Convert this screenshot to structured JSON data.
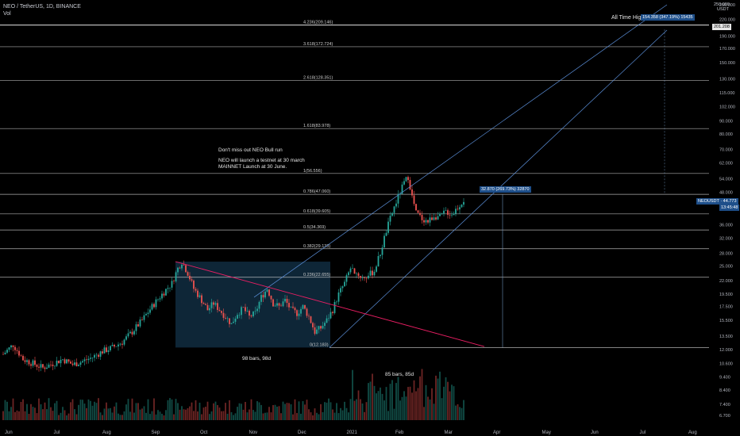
{
  "header": {
    "symbol": "NEO / TetherUS, 1D, BINANCE",
    "volume_label": "Vol",
    "currency_top": "250.000",
    "currency_code": "USDT"
  },
  "annotations": {
    "ath_label": "All Time High",
    "ath_box": "154.358 (347.19%) 15435",
    "right_target_box": "201.208",
    "measure_box": "32.870 (269.73%) 32870",
    "neo_tag": "NEOUSDT · 44.773",
    "neo_tag_sub": "13:45:48",
    "note_title": "Don't miss out NEO Bull run",
    "note_line1": "NEO will launch a testnet at 30 march",
    "note_line2": "MAINNET Launch at 30 June.",
    "bars_label_1": "98 bars, 98d",
    "bars_label_2": "85 bars, 85d"
  },
  "colors": {
    "background": "#000000",
    "up_candle": "#26a69a",
    "down_candle": "#ef5350",
    "fib_line": "#d9d9d9",
    "channel": "#5b8fd9",
    "trendline": "#e91e63",
    "box_fill": "#0f2a3d",
    "tag_blue": "#1e4f8a"
  },
  "chart_data": {
    "type": "candlestick",
    "title": "NEO / TetherUS, 1D, BINANCE",
    "y_scale": "log",
    "ylim": [
      6.0,
      250.0
    ],
    "y_ticks": [
      "250.000",
      "220.000",
      "190.000",
      "170.000",
      "150.000",
      "130.000",
      "115.000",
      "102.000",
      "90.000",
      "80.000",
      "70.000",
      "62.000",
      "54.000",
      "48.000",
      "42.000",
      "36.000",
      "32.000",
      "28.000",
      "25.000",
      "22.000",
      "19.500",
      "17.500",
      "15.500",
      "13.500",
      "12.000",
      "10.600",
      "9.400",
      "8.400",
      "7.400",
      "6.700"
    ],
    "x_ticks": [
      "Jun",
      "Jul",
      "Aug",
      "Sep",
      "Oct",
      "Nov",
      "Dec",
      "2021",
      "Feb",
      "Mar",
      "Apr",
      "May",
      "Jun",
      "Jul",
      "Aug"
    ],
    "fib_levels": [
      {
        "ratio": "4.236",
        "price": 209.146,
        "label": "4.236(209.146)"
      },
      {
        "ratio": "3.618",
        "price": 172.724,
        "label": "3.618(172.724)"
      },
      {
        "ratio": "2.618",
        "price": 128.351,
        "label": "2.618(128.351)"
      },
      {
        "ratio": "1.618",
        "price": 83.978,
        "label": "1.618(83.978)"
      },
      {
        "ratio": "1",
        "price": 56.556,
        "label": "1(56.556)"
      },
      {
        "ratio": "0.786",
        "price": 47.06,
        "label": "0.786(47.060)"
      },
      {
        "ratio": "0.618",
        "price": 39.605,
        "label": "0.618(39.605)"
      },
      {
        "ratio": "0.5",
        "price": 34.369,
        "label": "0.5(34.369)"
      },
      {
        "ratio": "0.382",
        "price": 29.133,
        "label": "0.382(29.133)"
      },
      {
        "ratio": "0.236",
        "price": 22.655,
        "label": "0.236(22.655)"
      },
      {
        "ratio": "0",
        "price": 12.183,
        "label": "0(12.183)"
      }
    ],
    "price_path": [
      [
        0,
        11.5
      ],
      [
        5,
        12.5
      ],
      [
        10,
        11.0
      ],
      [
        15,
        10.6
      ],
      [
        20,
        10.2
      ],
      [
        25,
        10.6
      ],
      [
        30,
        11.0
      ],
      [
        35,
        10.5
      ],
      [
        40,
        10.8
      ],
      [
        45,
        11.2
      ],
      [
        50,
        11.8
      ],
      [
        55,
        12.2
      ],
      [
        60,
        12.8
      ],
      [
        65,
        14.0
      ],
      [
        70,
        15.5
      ],
      [
        75,
        17.5
      ],
      [
        80,
        19.5
      ],
      [
        85,
        21.5
      ],
      [
        88,
        24.5
      ],
      [
        90,
        26.0
      ],
      [
        93,
        23.5
      ],
      [
        96,
        20.5
      ],
      [
        100,
        18.5
      ],
      [
        103,
        17.0
      ],
      [
        106,
        18.0
      ],
      [
        109,
        17.0
      ],
      [
        112,
        16.0
      ],
      [
        115,
        15.0
      ],
      [
        118,
        16.5
      ],
      [
        121,
        17.2
      ],
      [
        124,
        16.0
      ],
      [
        127,
        16.5
      ],
      [
        130,
        19.0
      ],
      [
        133,
        20.5
      ],
      [
        136,
        18.0
      ],
      [
        139,
        17.5
      ],
      [
        142,
        18.5
      ],
      [
        145,
        17.0
      ],
      [
        148,
        16.5
      ],
      [
        151,
        17.5
      ],
      [
        154,
        16.0
      ],
      [
        157,
        14.0
      ],
      [
        160,
        14.5
      ],
      [
        163,
        15.5
      ],
      [
        166,
        17.0
      ],
      [
        169,
        19.5
      ],
      [
        172,
        21.5
      ],
      [
        175,
        24.5
      ],
      [
        178,
        23.5
      ],
      [
        181,
        22.5
      ],
      [
        184,
        23.0
      ],
      [
        187,
        24.0
      ],
      [
        190,
        28.0
      ],
      [
        193,
        34.0
      ],
      [
        196,
        40.0
      ],
      [
        199,
        46.0
      ],
      [
        202,
        52.0
      ],
      [
        204,
        55.0
      ],
      [
        206,
        46.0
      ],
      [
        208,
        40.0
      ],
      [
        211,
        38.0
      ],
      [
        214,
        37.0
      ],
      [
        217,
        39.0
      ],
      [
        220,
        38.5
      ],
      [
        223,
        40.5
      ],
      [
        226,
        39.5
      ],
      [
        229,
        42.0
      ],
      [
        232,
        44.8
      ]
    ],
    "volume_label": "Vol"
  }
}
